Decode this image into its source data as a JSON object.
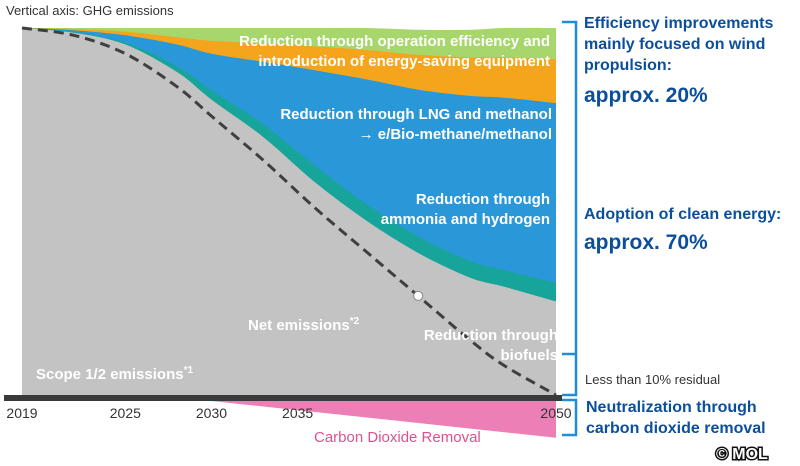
{
  "chart_data": {
    "type": "area",
    "title": "",
    "ylabel": "Vertical axis: GHG emissions",
    "x_ticks": [
      "2019",
      "2025",
      "2030",
      "2035",
      "2050"
    ],
    "xlim": [
      2019,
      2050
    ],
    "ylim": [
      0,
      100
    ],
    "x": [
      2019,
      2022,
      2025,
      2028,
      2030,
      2033,
      2036,
      2039,
      2042,
      2045,
      2047,
      2050
    ],
    "series": [
      {
        "name": "Reduction through operation efficiency and introduction of energy-saving equipment",
        "color": "#a7d66d",
        "values": [
          0,
          0.3,
          1,
          2.5,
          3.5,
          4.2,
          5,
          6,
          6.8,
          7.5,
          8,
          8.5
        ]
      },
      {
        "name": "Reduction through LNG and methanol → e/Bio-methane/methanol",
        "color": "#f4a51c",
        "values": [
          0,
          0.3,
          1,
          2,
          3.5,
          5,
          6.5,
          8,
          9.5,
          10.5,
          11,
          12
        ]
      },
      {
        "name": "Reduction through ammonia and hydrogen",
        "color": "#2a97d8",
        "values": [
          0,
          0.5,
          2,
          6,
          10,
          17,
          26,
          34,
          40,
          45,
          47,
          49
        ]
      },
      {
        "name": "Reduction through biofuels",
        "color": "#17a49a",
        "values": [
          0,
          0.2,
          0.5,
          1.5,
          2.5,
          3.5,
          4.5,
          4.5,
          4.5,
          4.5,
          4.5,
          5
        ]
      },
      {
        "name": "Scope 1/2 emissions",
        "color": "#c3c3c3",
        "values": [
          100,
          98.7,
          95.5,
          88,
          80.5,
          70.3,
          58,
          47.5,
          38.7,
          32,
          29.5,
          25.5
        ]
      }
    ],
    "net_emissions": {
      "label": "Net emissions",
      "x": [
        2019,
        2022,
        2025,
        2028,
        2030,
        2033,
        2036,
        2039,
        2042,
        2045,
        2047,
        2050
      ],
      "values": [
        100,
        98,
        93,
        84,
        76,
        64,
        51,
        39,
        27,
        15,
        8,
        0
      ]
    },
    "removal": {
      "label": "Carbon Dioxide Removal",
      "color": "#ec7fb6",
      "x": [
        2030,
        2050
      ],
      "values": [
        0,
        10
      ]
    },
    "annotations": {
      "scope12_label": "Scope 1/2 emissions",
      "scope12_sup": "*1",
      "net_label": "Net emissions",
      "net_sup": "*2",
      "green_line1": "Reduction through operation efficiency and",
      "green_line2": "introduction of energy-saving equipment",
      "orange_line1": "Reduction through LNG and methanol",
      "orange_line2": "→ e/Bio-methane/methanol",
      "blue_line1": "Reduction through",
      "blue_line2": "ammonia and hydrogen",
      "teal_line1": "Reduction through",
      "teal_line2": "biofuels",
      "residual": "Less than 10% residual",
      "removal_label": "Carbon Dioxide Removal"
    },
    "right_text": {
      "efficiency_line1": "Efficiency improvements",
      "efficiency_line2": "mainly focused on wind",
      "efficiency_line3": "propulsion:",
      "efficiency_value": "approx. 20%",
      "clean_line1": "Adoption of clean energy:",
      "clean_value": "approx. 70%",
      "neutral_line1": "Neutralization through",
      "neutral_line2": "carbon dioxide removal"
    },
    "colors": {
      "accent_text": "#0b4f9c",
      "bracket": "#1f8ed8",
      "axis": "#333333",
      "dash": "#3f3f3f"
    }
  },
  "watermark": "© MOL"
}
